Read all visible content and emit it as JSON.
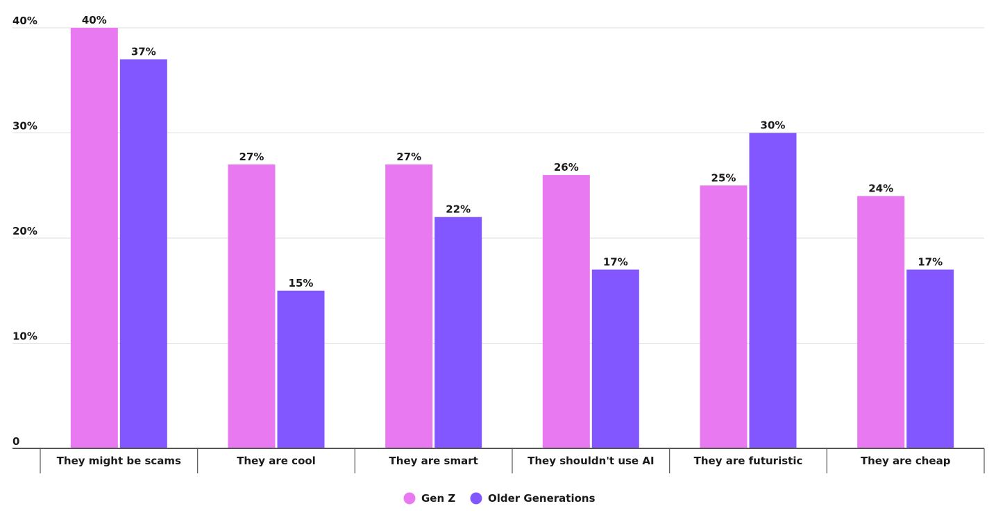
{
  "chart_data": {
    "type": "bar",
    "title": "",
    "xlabel": "",
    "ylabel": "",
    "ylim": [
      0,
      40
    ],
    "y_ticks": [
      {
        "value": 0,
        "label": "0"
      },
      {
        "value": 10,
        "label": "10%"
      },
      {
        "value": 20,
        "label": "20%"
      },
      {
        "value": 30,
        "label": "30%"
      },
      {
        "value": 40,
        "label": "40%"
      }
    ],
    "grid": true,
    "legend_position": "bottom-center",
    "categories": [
      "They might be scams",
      "They are cool",
      "They are smart",
      "They shouldn't use AI",
      "They are futuristic",
      "They are cheap"
    ],
    "series": [
      {
        "name": "Gen Z",
        "color": "#E879F0",
        "values": [
          40,
          27,
          27,
          26,
          25,
          24
        ],
        "labels": [
          "40%",
          "27%",
          "27%",
          "26%",
          "25%",
          "24%"
        ]
      },
      {
        "name": "Older Generations",
        "color": "#8257FF",
        "values": [
          37,
          15,
          22,
          17,
          30,
          17
        ],
        "labels": [
          "37%",
          "15%",
          "22%",
          "17%",
          "30%",
          "17%"
        ]
      }
    ]
  }
}
